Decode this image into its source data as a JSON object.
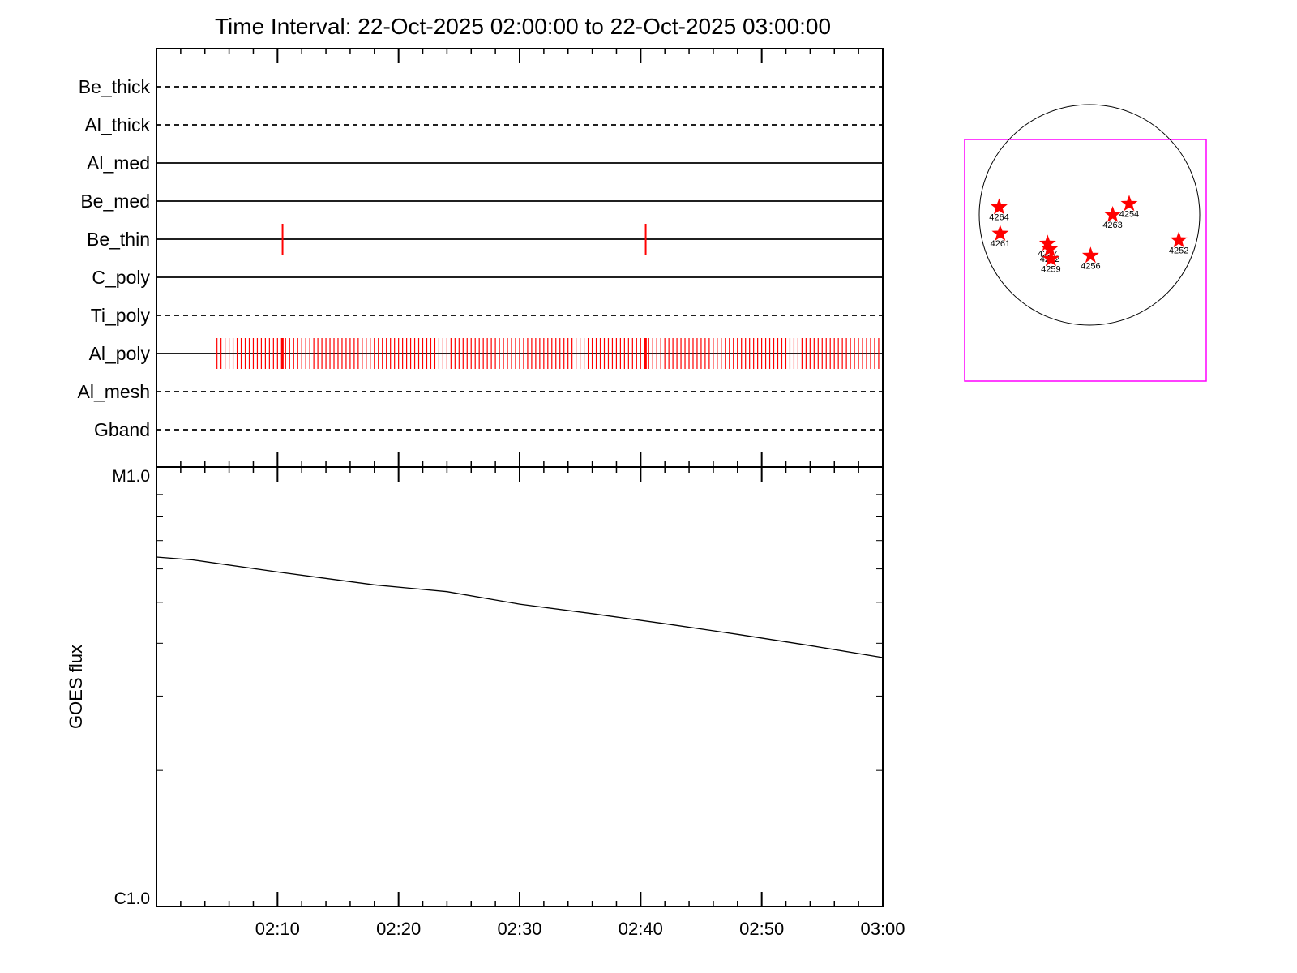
{
  "chart_data": [
    {
      "type": "timeline",
      "title": "Time Interval: 22-Oct-2025 02:00:00 to 22-Oct-2025 03:00:00",
      "x_range": [
        "02:00",
        "03:00"
      ],
      "x_ticks": [
        "02:10",
        "02:20",
        "02:30",
        "02:40",
        "02:50",
        "03:00"
      ],
      "rows": [
        {
          "name": "Be_thick",
          "style": "dashed",
          "events": []
        },
        {
          "name": "Al_thick",
          "style": "dashed",
          "events": []
        },
        {
          "name": "Al_med",
          "style": "solid",
          "events": []
        },
        {
          "name": "Be_med",
          "style": "solid",
          "events": []
        },
        {
          "name": "Be_thin",
          "style": "solid",
          "events": [
            "02:10:25",
            "02:40:25"
          ]
        },
        {
          "name": "C_poly",
          "style": "solid",
          "events": []
        },
        {
          "name": "Ti_poly",
          "style": "dashed",
          "events": []
        },
        {
          "name": "Al_poly",
          "style": "solid",
          "events": [
            "periodic 02:05:00-02:59:40 every 20s"
          ],
          "event_start_min": 5.0,
          "event_end_min": 59.67,
          "event_step_min": 0.3333,
          "highlight_events": [
            "02:10:25",
            "02:40:25"
          ]
        },
        {
          "name": "Al_mesh",
          "style": "dashed",
          "events": []
        },
        {
          "name": "Gband",
          "style": "dashed",
          "events": []
        }
      ],
      "event_color": "#ff0000"
    },
    {
      "type": "line",
      "ylabel": "GOES flux",
      "yscale": "log",
      "y_tick_labels": [
        "M1.0",
        "C1.0"
      ],
      "ylim": [
        "C1.0",
        "M1.0"
      ],
      "x_range": [
        "02:00",
        "03:00"
      ],
      "x_ticks": [
        "02:10",
        "02:20",
        "02:30",
        "02:40",
        "02:50",
        "03:00"
      ],
      "series": [
        {
          "x": [
            0,
            3,
            10,
            18,
            24,
            30,
            36,
            42,
            48,
            54,
            60
          ],
          "y": [
            6.4e-06,
            6.3e-06,
            5.9e-06,
            5.5e-06,
            5.3e-06,
            4.95e-06,
            4.7e-06,
            4.45e-06,
            4.2e-06,
            3.95e-06,
            3.7e-06
          ],
          "x_unit": "minutes after 02:00",
          "y_unit": "W/m^2"
        }
      ]
    },
    {
      "type": "scatter",
      "points": [
        {
          "label": "4264",
          "x": -0.82,
          "y": 0.07
        },
        {
          "label": "4261",
          "x": -0.81,
          "y": -0.17
        },
        {
          "label": "4254",
          "x": 0.36,
          "y": 0.1
        },
        {
          "label": "4263",
          "x": 0.21,
          "y": 0.0
        },
        {
          "label": "4252",
          "x": 0.81,
          "y": -0.23
        },
        {
          "label": "4257",
          "x": -0.38,
          "y": -0.26
        },
        {
          "label": "4262",
          "x": -0.36,
          "y": -0.31
        },
        {
          "label": "4259",
          "x": -0.35,
          "y": -0.4
        },
        {
          "label": "4256",
          "x": 0.01,
          "y": -0.37
        }
      ],
      "disk_color": "#000000",
      "box_color": "#ff00ff",
      "marker_color": "#ff0000"
    }
  ]
}
